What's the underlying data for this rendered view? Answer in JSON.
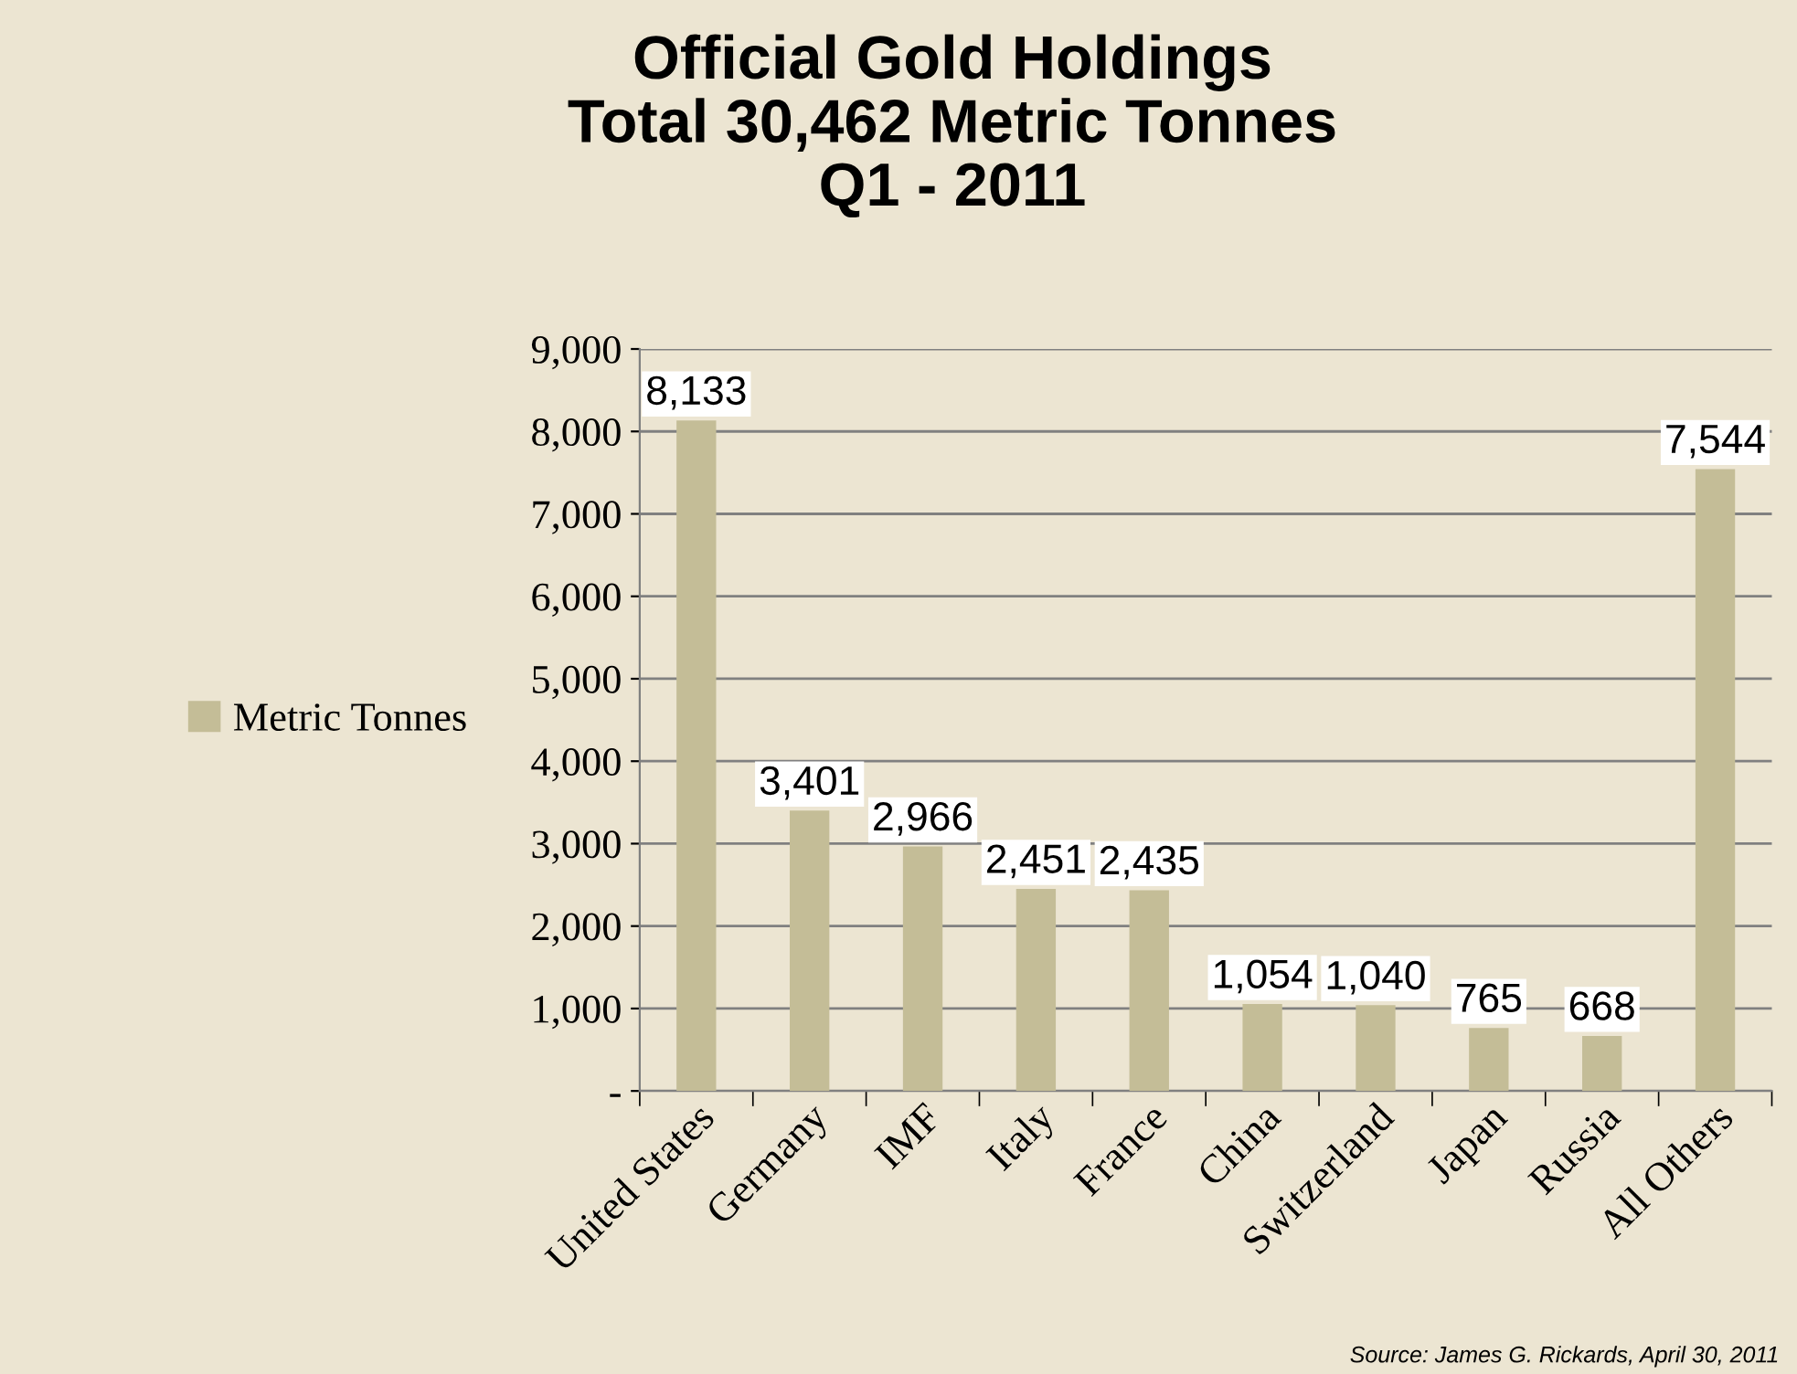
{
  "chart_data": {
    "type": "bar",
    "title": "Official Gold Holdings\nTotal 30,462 Metric Tonnes\nQ1 - 2011",
    "categories": [
      "United States",
      "Germany",
      "IMF",
      "Italy",
      "France",
      "China",
      "Switzerland",
      "Japan",
      "Russia",
      "All Others"
    ],
    "series": [
      {
        "name": "Metric Tonnes",
        "color": "#c4bd97",
        "values": [
          8133,
          3401,
          2966,
          2451,
          2435,
          1054,
          1040,
          765,
          668,
          7544
        ],
        "value_labels": [
          "8,133",
          "3,401",
          "2,966",
          "2,451",
          "2,435",
          "1,054",
          "1,040",
          "765",
          "668",
          "7,544"
        ]
      }
    ],
    "ylim": [
      0,
      9000
    ],
    "yticks": [
      {
        "value": 0,
        "label": "-"
      },
      {
        "value": 1000,
        "label": "1,000"
      },
      {
        "value": 2000,
        "label": "2,000"
      },
      {
        "value": 3000,
        "label": "3,000"
      },
      {
        "value": 4000,
        "label": "4,000"
      },
      {
        "value": 5000,
        "label": "5,000"
      },
      {
        "value": 6000,
        "label": "6,000"
      },
      {
        "value": 7000,
        "label": "7,000"
      },
      {
        "value": 8000,
        "label": "8,000"
      },
      {
        "value": 9000,
        "label": "9,000"
      }
    ],
    "grid": "y",
    "legend": "left",
    "annotations": [
      "Source: James G. Rickards, April 30, 2011"
    ]
  }
}
